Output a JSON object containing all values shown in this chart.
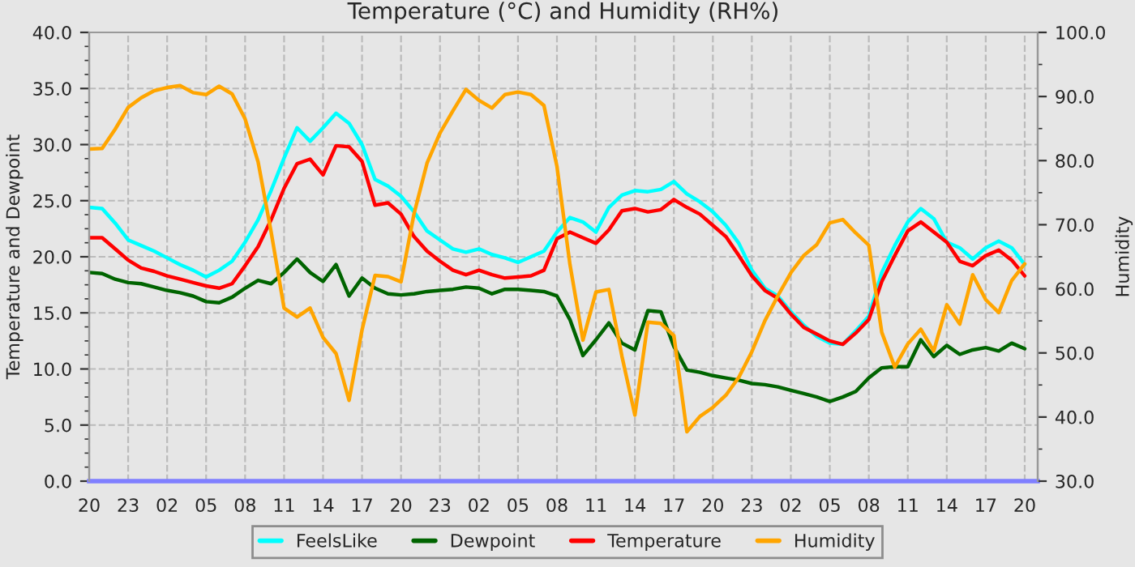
{
  "chart_data": {
    "type": "line",
    "title": "Temperature (°C) and Humidity (RH%)",
    "ylabel": "Temperature and Dewpoint",
    "y2label": "Humidity",
    "categories": [
      "20",
      null,
      null,
      "23",
      null,
      null,
      "02",
      null,
      null,
      "05",
      null,
      null,
      "08",
      null,
      null,
      "11",
      null,
      null,
      "14",
      null,
      null,
      "17",
      null,
      null,
      "20",
      null,
      null,
      "23",
      null,
      null,
      "02",
      null,
      null,
      "05",
      null,
      null,
      "08",
      null,
      null,
      "11",
      null,
      null,
      "14",
      null,
      null,
      "17",
      null,
      null,
      "20",
      null,
      null,
      "23",
      null,
      null,
      "02",
      null,
      null,
      "05",
      null,
      null,
      "08",
      null,
      null,
      "11",
      null,
      null,
      "14",
      null,
      null,
      "17",
      null,
      null,
      "20"
    ],
    "ylim": [
      0,
      40
    ],
    "yticks": [
      {
        "value": 0,
        "label": "0.0"
      },
      {
        "value": 5,
        "label": "5.0"
      },
      {
        "value": 10,
        "label": "10.0"
      },
      {
        "value": 15,
        "label": "15.0"
      },
      {
        "value": 20,
        "label": "20.0"
      },
      {
        "value": 25,
        "label": "25.0"
      },
      {
        "value": 30,
        "label": "30.0"
      },
      {
        "value": 35,
        "label": "35.0"
      },
      {
        "value": 40,
        "label": "40.0"
      }
    ],
    "y2lim": [
      30,
      100
    ],
    "y2ticks": [
      {
        "value": 30,
        "label": "30.0"
      },
      {
        "value": 40,
        "label": "40.0"
      },
      {
        "value": 50,
        "label": "50.0"
      },
      {
        "value": 60,
        "label": "60.0"
      },
      {
        "value": 70,
        "label": "70.0"
      },
      {
        "value": 80,
        "label": "80.0"
      },
      {
        "value": 90,
        "label": "90.0"
      },
      {
        "value": 100,
        "label": "100.0"
      }
    ],
    "grid": true,
    "legend": "bottom",
    "line_style": "solid",
    "marker": "none",
    "series": [
      {
        "name": "FeelsLike",
        "color": "#00ffff",
        "values": [
          24.4,
          24.3,
          23.0,
          21.5,
          21.0,
          20.5,
          19.9,
          19.3,
          18.8,
          18.2,
          18.8,
          19.6,
          21.3,
          23.3,
          25.9,
          28.8,
          31.5,
          30.3,
          31.5,
          32.8,
          31.9,
          30.0,
          26.9,
          26.3,
          25.4,
          24.0,
          22.3,
          21.5,
          20.7,
          20.4,
          20.7,
          20.2,
          19.9,
          19.5,
          20.0,
          20.5,
          22.2,
          23.5,
          23.1,
          22.2,
          24.4,
          25.5,
          25.9,
          25.8,
          26.0,
          26.7,
          25.6,
          24.9,
          24.0,
          22.8,
          21.2,
          18.8,
          17.2,
          16.5,
          15.1,
          13.9,
          12.9,
          12.3,
          12.2,
          13.4,
          14.7,
          18.6,
          21.0,
          23.1,
          24.3,
          23.4,
          21.3,
          20.8,
          19.8,
          20.8,
          21.4,
          20.8,
          19.3
        ]
      },
      {
        "name": "Dewpoint",
        "color": "#006400",
        "values": [
          18.6,
          18.5,
          18.0,
          17.7,
          17.6,
          17.3,
          17.0,
          16.8,
          16.5,
          16.0,
          15.9,
          16.4,
          17.2,
          17.9,
          17.6,
          18.6,
          19.8,
          18.6,
          17.8,
          19.3,
          16.5,
          18.1,
          17.2,
          16.7,
          16.6,
          16.7,
          16.9,
          17.0,
          17.1,
          17.3,
          17.2,
          16.7,
          17.1,
          17.1,
          17.0,
          16.9,
          16.5,
          14.4,
          11.2,
          12.6,
          14.1,
          12.3,
          11.7,
          15.2,
          15.1,
          12.0,
          9.9,
          9.7,
          9.4,
          9.2,
          9.0,
          8.7,
          8.6,
          8.4,
          8.1,
          7.8,
          7.5,
          7.1,
          7.5,
          8.0,
          9.2,
          10.1,
          10.2,
          10.2,
          12.6,
          11.1,
          12.1,
          11.3,
          11.7,
          11.9,
          11.6,
          12.3,
          11.8
        ]
      },
      {
        "name": "Temperature",
        "color": "#ff0000",
        "values": [
          21.7,
          21.7,
          20.7,
          19.7,
          19.0,
          18.7,
          18.3,
          18.0,
          17.7,
          17.4,
          17.2,
          17.6,
          19.2,
          20.9,
          23.3,
          26.1,
          28.3,
          28.7,
          27.3,
          29.9,
          29.8,
          28.5,
          24.6,
          24.8,
          23.8,
          21.8,
          20.5,
          19.6,
          18.8,
          18.4,
          18.8,
          18.4,
          18.1,
          18.2,
          18.3,
          18.8,
          21.6,
          22.2,
          21.7,
          21.2,
          22.4,
          24.1,
          24.3,
          24.0,
          24.2,
          25.1,
          24.4,
          23.8,
          22.8,
          21.8,
          20.1,
          18.3,
          17.0,
          16.3,
          14.9,
          13.7,
          13.1,
          12.5,
          12.2,
          13.2,
          14.4,
          17.8,
          20.1,
          22.3,
          23.1,
          22.2,
          21.3,
          19.6,
          19.2,
          20.1,
          20.6,
          19.7,
          18.3
        ]
      },
      {
        "name": "Humidity",
        "color": "#ffa500",
        "axis": "y2",
        "values": [
          81.8,
          81.9,
          84.9,
          88.3,
          89.8,
          90.9,
          91.4,
          91.7,
          90.6,
          90.3,
          91.6,
          90.4,
          86.5,
          79.8,
          68.9,
          57.0,
          55.6,
          57.0,
          52.4,
          49.9,
          42.6,
          53.6,
          62.1,
          61.9,
          61.1,
          71.7,
          79.6,
          84.3,
          87.8,
          91.1,
          89.4,
          88.2,
          90.3,
          90.7,
          90.3,
          88.6,
          79.1,
          63.8,
          52.0,
          59.5,
          59.9,
          49.5,
          40.3,
          54.8,
          54.6,
          52.7,
          37.7,
          40.1,
          41.5,
          43.4,
          46.2,
          50.2,
          55.0,
          58.9,
          62.5,
          65.2,
          66.9,
          70.3,
          70.8,
          68.7,
          66.8,
          53.2,
          47.8,
          51.4,
          53.7,
          50.3,
          57.5,
          54.5,
          62.2,
          58.3,
          56.3,
          61.3,
          63.9
        ]
      }
    ]
  }
}
